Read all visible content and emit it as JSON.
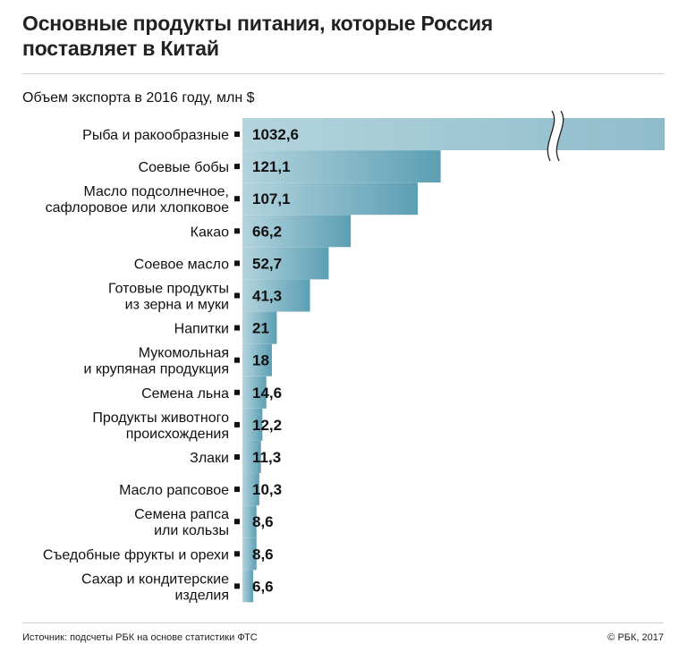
{
  "header": {
    "title_line1": "Основные продукты питания, которые Россия",
    "title_line2": "поставляет в Китай"
  },
  "chart_data": {
    "type": "bar",
    "orientation": "horizontal",
    "subtitle": "Объем экспорта в 2016 году, млн $",
    "axis_break": "first bar truncated (broken axis)",
    "categories": [
      [
        "Рыба и ракообразные"
      ],
      [
        "Соевые бобы"
      ],
      [
        "Масло подсолнечное,",
        "сафлоровое или хлопковое"
      ],
      [
        "Какао"
      ],
      [
        "Соевое масло"
      ],
      [
        "Готовые продукты",
        "из зерна и муки"
      ],
      [
        "Напитки"
      ],
      [
        "Мукомольная",
        "и крупяная продукция"
      ],
      [
        "Семена льна"
      ],
      [
        "Продукты животного",
        "происхождения"
      ],
      [
        "Злаки"
      ],
      [
        "Масло рапсовое"
      ],
      [
        "Семена рапса",
        "или кользы"
      ],
      [
        "Съедобные фрукты и орехи"
      ],
      [
        "Сахар и кондитерские",
        "изделия"
      ]
    ],
    "values": [
      1032.6,
      121.1,
      107.1,
      66.2,
      52.7,
      41.3,
      21,
      18,
      14.6,
      12.2,
      11.3,
      10.3,
      8.6,
      8.6,
      6.6
    ],
    "value_labels": [
      "1032,6",
      "121,1",
      "107,1",
      "66,2",
      "52,7",
      "41,3",
      "21",
      "18",
      "14,6",
      "12,2",
      "11,3",
      "10,3",
      "8,6",
      "8,6",
      "6,6"
    ],
    "colors": {
      "bar_light": "#b4d4de",
      "bar_dark": "#5c9fb3",
      "marker": "#111111"
    }
  },
  "footer": {
    "source": "Источник: подсчеты РБК на основе статистики ФТС",
    "copyright": "© РБК, 2017"
  }
}
